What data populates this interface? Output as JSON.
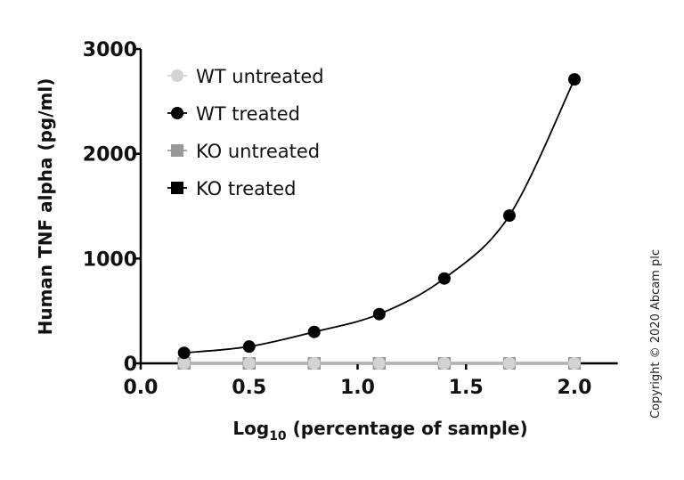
{
  "chart_data": {
    "type": "scatter",
    "xlabel": "Log10 (percentage of sample)",
    "xlabel_parts": {
      "pre": "Log",
      "sub": "10",
      "post": " (percentage of sample)"
    },
    "ylabel": "Human TNF alpha (pg/ml)",
    "xlim": [
      0.0,
      2.2
    ],
    "ylim": [
      0,
      3000
    ],
    "xticks": [
      "0.0",
      "0.5",
      "1.0",
      "1.5",
      "2.0"
    ],
    "yticks": [
      "0",
      "1000",
      "2000",
      "3000"
    ],
    "grid": false,
    "legend_position": "top-left",
    "x": [
      0.2,
      0.5,
      0.8,
      1.1,
      1.4,
      1.7,
      2.0
    ],
    "series": [
      {
        "name": "KO treated",
        "marker": "square",
        "color": "#000000",
        "values": [
          0,
          0,
          0,
          0,
          0,
          0,
          0
        ]
      },
      {
        "name": "KO untreated",
        "marker": "square",
        "color": "#999999",
        "values": [
          0,
          0,
          0,
          0,
          0,
          0,
          0
        ]
      },
      {
        "name": "WT untreated",
        "marker": "circle",
        "color": "#d3d3d3",
        "values": [
          0,
          0,
          0,
          0,
          0,
          0,
          0
        ]
      },
      {
        "name": "WT treated",
        "marker": "circle",
        "color": "#000000",
        "values": [
          100,
          160,
          300,
          470,
          810,
          1410,
          2710
        ],
        "fit_curve": true
      }
    ],
    "legend_order": [
      "WT untreated",
      "WT treated",
      "KO untreated",
      "KO treated"
    ]
  },
  "copyright": "Copyright © 2020 Abcam plc"
}
